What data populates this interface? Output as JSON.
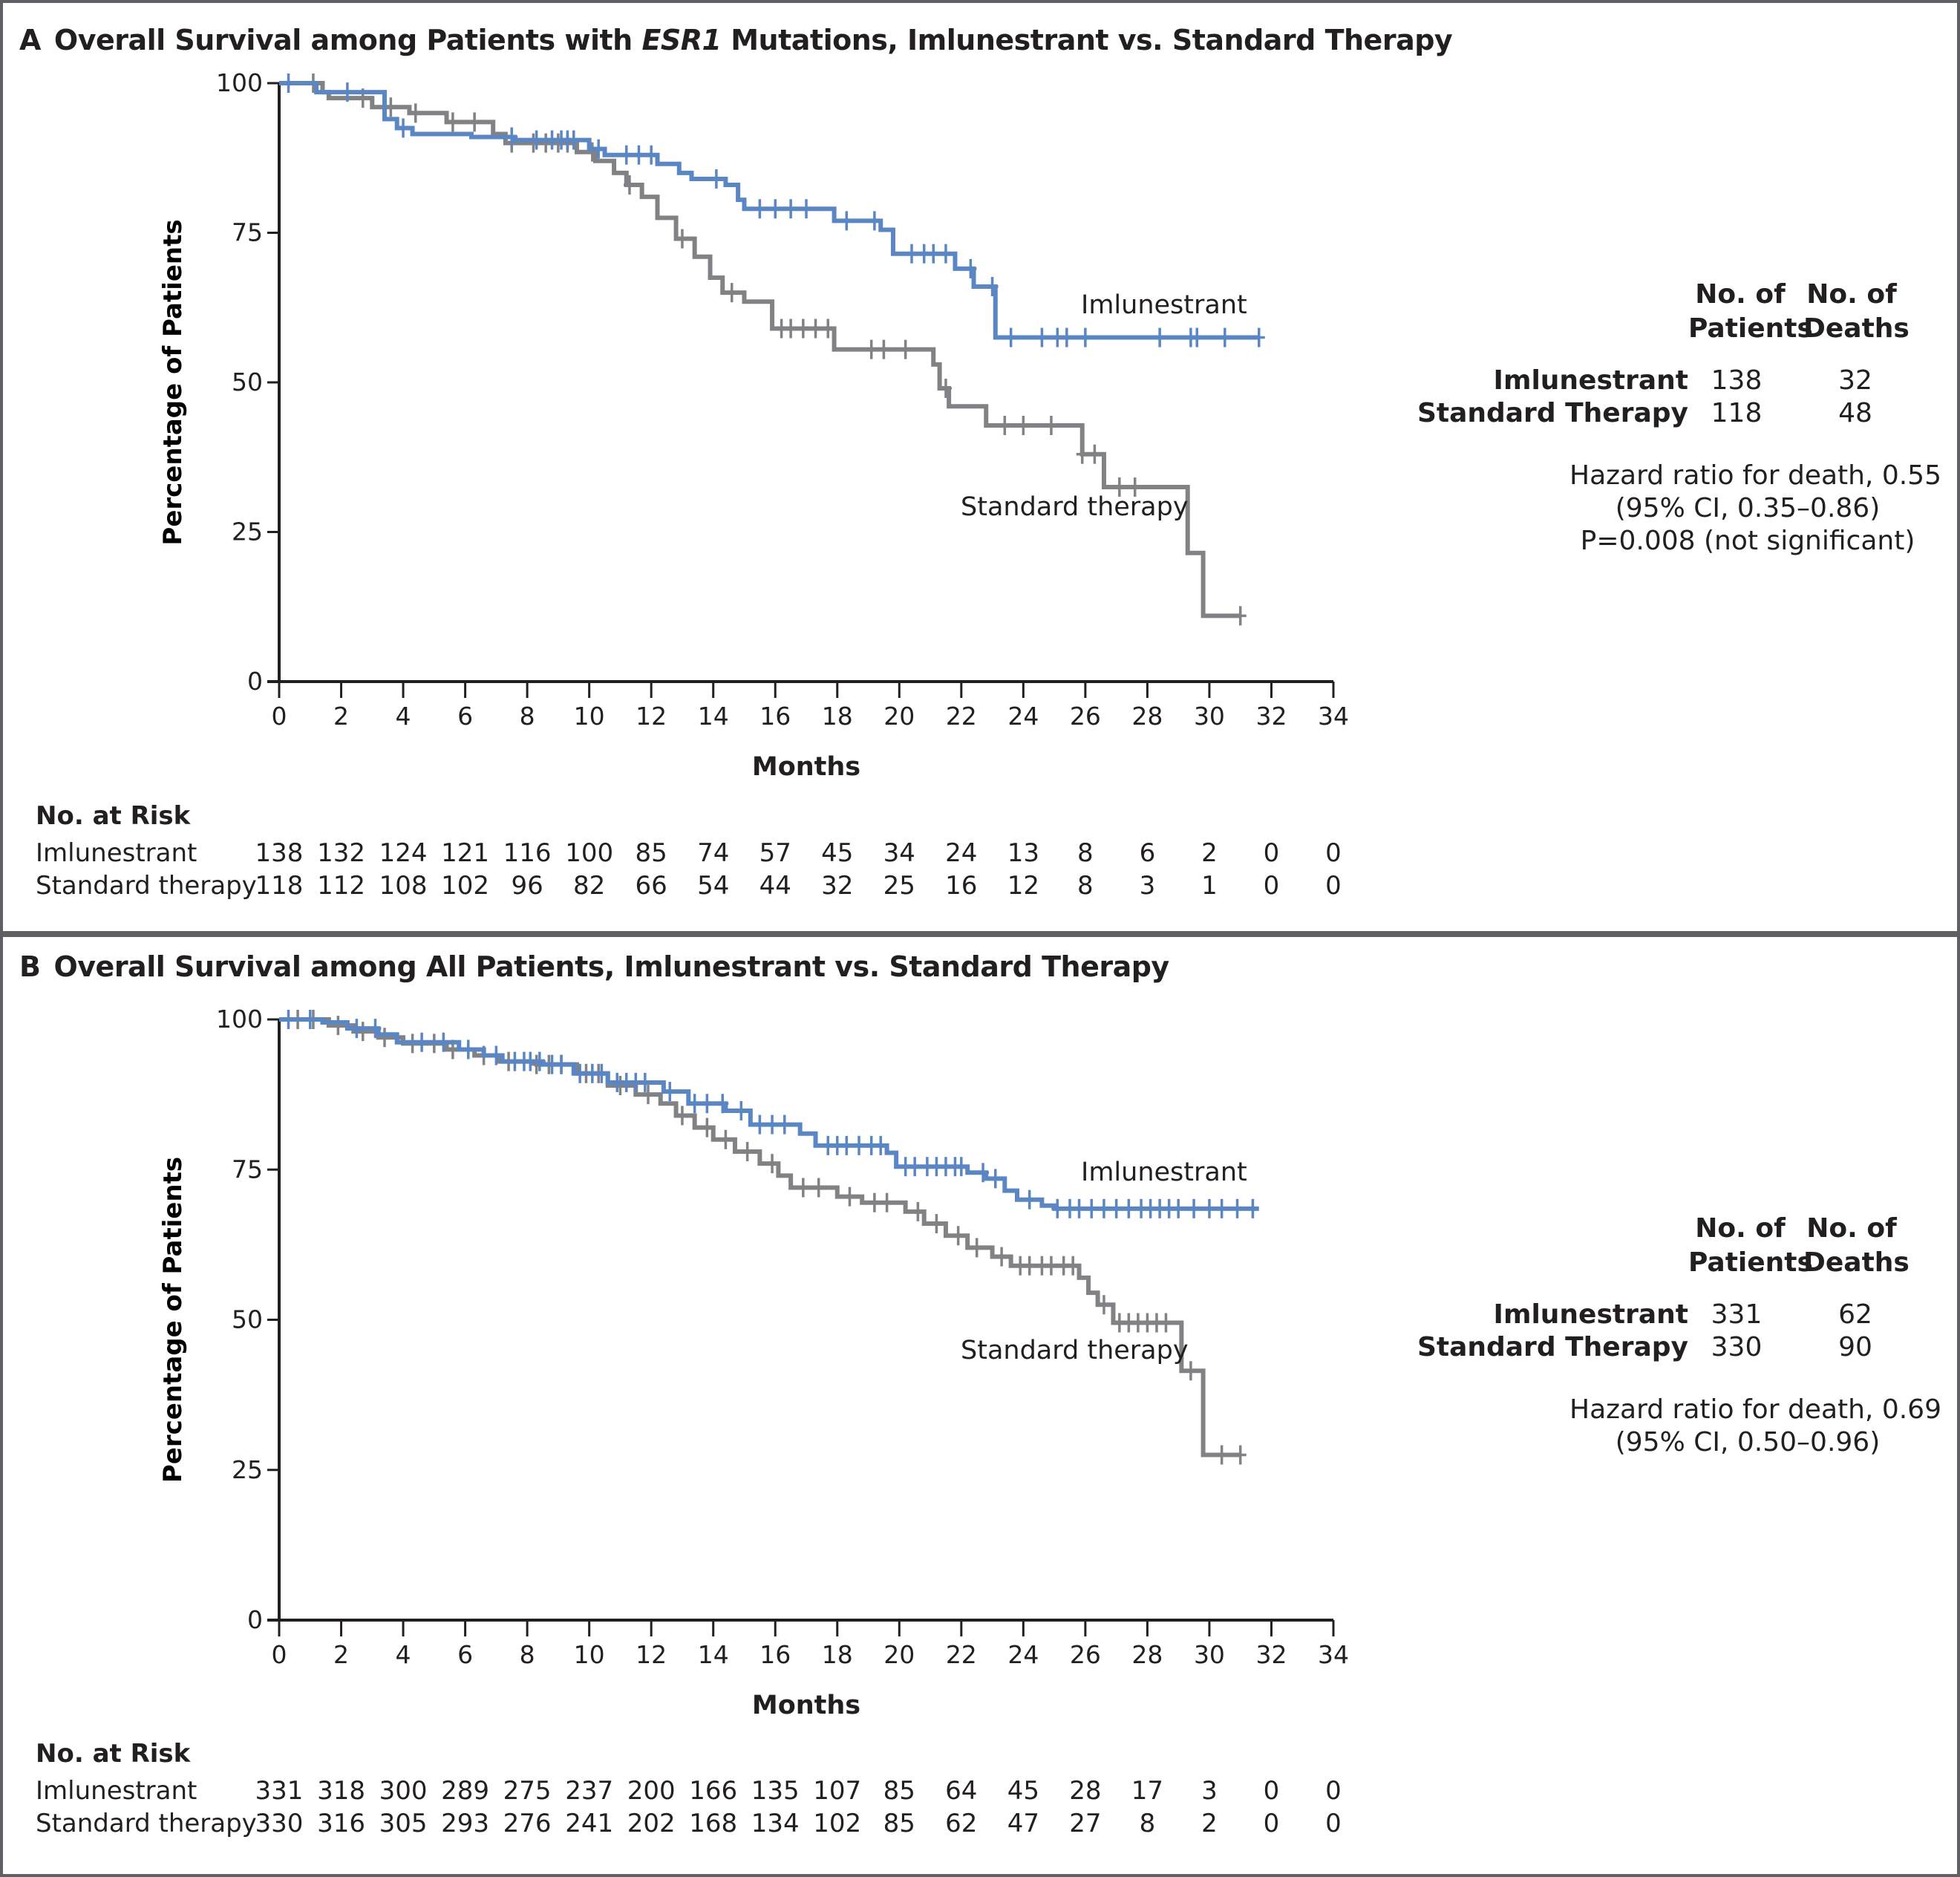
{
  "colors": {
    "imlunestrant": "#5b86c4",
    "standard": "#808285",
    "axis": "#231f20",
    "frame": "#5f6066"
  },
  "chart_data": [
    {
      "type": "line",
      "panel": "A",
      "title_letter": "A",
      "title_pre": "Overall Survival among Patients with ",
      "title_italic": "ESR1",
      "title_post": " Mutations, Imlunestrant vs. Standard Therapy",
      "xlabel": "Months",
      "ylabel": "Percentage of Patients",
      "xlim": [
        0,
        34
      ],
      "ylim": [
        0,
        100
      ],
      "xticks": [
        0,
        2,
        4,
        6,
        8,
        10,
        12,
        14,
        16,
        18,
        20,
        22,
        24,
        26,
        28,
        30,
        32,
        34
      ],
      "yticks": [
        0,
        25,
        50,
        75,
        100
      ],
      "grid": false,
      "series": [
        {
          "name": "Imlunestrant",
          "label": "Imlunestrant",
          "color": "#5b86c4",
          "steps": [
            [
              0,
              100
            ],
            [
              1.2,
              98.5
            ],
            [
              3.4,
              94
            ],
            [
              3.8,
              92.5
            ],
            [
              4.3,
              91.5
            ],
            [
              6.2,
              91
            ],
            [
              7.6,
              90.5
            ],
            [
              10,
              89
            ],
            [
              10.5,
              88
            ],
            [
              12.2,
              86.5
            ],
            [
              12.9,
              85
            ],
            [
              13.3,
              84
            ],
            [
              14.4,
              83
            ],
            [
              14.8,
              80.5
            ],
            [
              15,
              79
            ],
            [
              17.9,
              77
            ],
            [
              19.4,
              75.5
            ],
            [
              19.8,
              71.5
            ],
            [
              21.8,
              69
            ],
            [
              22.4,
              66
            ],
            [
              23.1,
              57.5
            ],
            [
              31.6,
              57.5
            ]
          ],
          "censor": [
            0.3,
            2.2,
            4,
            7.5,
            8.3,
            8.8,
            9.1,
            9.3,
            9.5,
            10.3,
            11.2,
            11.6,
            12,
            14.1,
            15.5,
            16,
            16.5,
            17,
            18.3,
            19.2,
            20.4,
            20.8,
            21.1,
            21.5,
            22.3,
            23,
            23.6,
            24.6,
            25.1,
            25.4,
            26,
            28.4,
            29.4,
            29.6,
            30.5,
            31.6
          ]
        },
        {
          "name": "Standard therapy",
          "label": "Standard therapy",
          "color": "#808285",
          "steps": [
            [
              0,
              100
            ],
            [
              1.4,
              98.5
            ],
            [
              1.6,
              97.5
            ],
            [
              3,
              96
            ],
            [
              4.2,
              95
            ],
            [
              5.4,
              93.5
            ],
            [
              6.9,
              91.5
            ],
            [
              7.3,
              90
            ],
            [
              9.6,
              88.5
            ],
            [
              10.2,
              87
            ],
            [
              10.8,
              85
            ],
            [
              11.2,
              83
            ],
            [
              11.7,
              81
            ],
            [
              12.2,
              77.5
            ],
            [
              12.8,
              74
            ],
            [
              13.4,
              71
            ],
            [
              13.9,
              67.5
            ],
            [
              14.3,
              65
            ],
            [
              15,
              63.5
            ],
            [
              15.9,
              59
            ],
            [
              17.9,
              55.5
            ],
            [
              21.1,
              53
            ],
            [
              21.3,
              49
            ],
            [
              21.6,
              46
            ],
            [
              22.8,
              42.8
            ],
            [
              25.9,
              38
            ],
            [
              26.6,
              32.5
            ],
            [
              29.3,
              21.5
            ],
            [
              29.8,
              11
            ],
            [
              31,
              11
            ]
          ],
          "censor": [
            1.1,
            2.7,
            3.6,
            4.4,
            5.6,
            6.3,
            7.5,
            8.2,
            8.6,
            9,
            9.3,
            10.1,
            11.3,
            13,
            14.6,
            16.2,
            16.5,
            16.9,
            17.3,
            17.7,
            19.1,
            19.5,
            20.2,
            21.5,
            23.4,
            24,
            24.9,
            25.9,
            26.3,
            27.1,
            27.6,
            31
          ]
        }
      ],
      "annotations": {
        "imlunestrant_label": "Imlunestrant",
        "standard_label": "Standard therapy"
      }
    },
    {
      "type": "line",
      "panel": "B",
      "title_letter": "B",
      "title_pre": "Overall Survival among All Patients, Imlunestrant vs. Standard Therapy",
      "title_italic": "",
      "title_post": "",
      "xlabel": "Months",
      "ylabel": "Percentage of Patients",
      "xlim": [
        0,
        34
      ],
      "ylim": [
        0,
        100
      ],
      "xticks": [
        0,
        2,
        4,
        6,
        8,
        10,
        12,
        14,
        16,
        18,
        20,
        22,
        24,
        26,
        28,
        30,
        32,
        34
      ],
      "yticks": [
        0,
        25,
        50,
        75,
        100
      ],
      "grid": false,
      "series": [
        {
          "name": "Imlunestrant",
          "label": "Imlunestrant",
          "color": "#5b86c4",
          "steps": [
            [
              0,
              100
            ],
            [
              1.4,
              99.5
            ],
            [
              2.2,
              98.5
            ],
            [
              3.2,
              97.5
            ],
            [
              3.8,
              96.2
            ],
            [
              5.8,
              95
            ],
            [
              6.6,
              94
            ],
            [
              7.2,
              93
            ],
            [
              8.5,
              92.5
            ],
            [
              9.5,
              91
            ],
            [
              10.6,
              89.5
            ],
            [
              12.4,
              88
            ],
            [
              13.2,
              86
            ],
            [
              14.4,
              84.8
            ],
            [
              15.2,
              82.5
            ],
            [
              16.8,
              81
            ],
            [
              17.3,
              79
            ],
            [
              19.6,
              77.8
            ],
            [
              19.9,
              75.5
            ],
            [
              22.2,
              74.5
            ],
            [
              22.8,
              73.5
            ],
            [
              23.4,
              71.5
            ],
            [
              23.8,
              70
            ],
            [
              24.6,
              69
            ],
            [
              25,
              68.5
            ],
            [
              31.6,
              68.5
            ]
          ],
          "censor": [
            0.3,
            1,
            2.5,
            3.1,
            4.6,
            5.3,
            6.1,
            7,
            7.6,
            7.9,
            8.1,
            8.4,
            8.8,
            9.1,
            9.7,
            10.1,
            10.4,
            10.9,
            11.2,
            11.5,
            11.8,
            12.6,
            13.4,
            13.8,
            14.3,
            14.9,
            15.5,
            15.9,
            16.3,
            17.7,
            18,
            18.3,
            18.7,
            19.1,
            19.4,
            20.2,
            20.5,
            20.9,
            21.2,
            21.5,
            21.8,
            22,
            22.7,
            23.1,
            24.2,
            25.1,
            25.5,
            25.8,
            26.2,
            26.6,
            27,
            27.4,
            27.8,
            28.1,
            28.4,
            28.7,
            29,
            29.5,
            30,
            30.4,
            30.9,
            31.4
          ]
        },
        {
          "name": "Standard therapy",
          "label": "Standard therapy",
          "color": "#808285",
          "steps": [
            [
              0,
              100
            ],
            [
              1.6,
              99
            ],
            [
              2.4,
              98
            ],
            [
              3.2,
              97
            ],
            [
              4,
              96
            ],
            [
              5.4,
              95
            ],
            [
              6.3,
              94
            ],
            [
              7.1,
              93
            ],
            [
              8.3,
              92.5
            ],
            [
              9.6,
              91
            ],
            [
              10.6,
              89
            ],
            [
              11.5,
              87.5
            ],
            [
              12.3,
              86
            ],
            [
              12.8,
              84
            ],
            [
              13.4,
              82
            ],
            [
              14,
              80
            ],
            [
              14.7,
              78
            ],
            [
              15.5,
              76
            ],
            [
              16.1,
              74
            ],
            [
              16.5,
              72
            ],
            [
              18,
              70.5
            ],
            [
              18.8,
              69.5
            ],
            [
              20.2,
              68
            ],
            [
              20.8,
              66
            ],
            [
              21.5,
              64
            ],
            [
              22.2,
              62
            ],
            [
              23,
              60.5
            ],
            [
              23.6,
              59
            ],
            [
              25.8,
              57
            ],
            [
              26.1,
              54.5
            ],
            [
              26.4,
              52.5
            ],
            [
              26.9,
              49.5
            ],
            [
              29.1,
              41.5
            ],
            [
              29.8,
              27.5
            ],
            [
              31,
              27.5
            ]
          ],
          "censor": [
            0.6,
            1.1,
            1.9,
            2.7,
            3.4,
            4.3,
            5,
            5.6,
            6.6,
            7.4,
            8.3,
            8.7,
            9.1,
            9.9,
            10.3,
            11,
            11.9,
            13,
            13.8,
            14.4,
            15.1,
            15.9,
            16.9,
            17.4,
            18.4,
            19.2,
            19.6,
            20.6,
            21.2,
            21.9,
            22.5,
            23.3,
            23.9,
            24.2,
            24.6,
            24.9,
            25.3,
            25.6,
            26.6,
            27.1,
            27.4,
            27.7,
            28,
            28.3,
            28.6,
            29.4,
            30.4,
            31
          ]
        }
      ],
      "annotations": {
        "imlunestrant_label": "Imlunestrant",
        "standard_label": "Standard therapy"
      }
    }
  ],
  "panels": [
    {
      "stats": {
        "col1_header": [
          "No. of",
          "Patients"
        ],
        "col2_header": [
          "No. of",
          "Deaths"
        ],
        "rows": [
          {
            "label": "Imlunestrant",
            "patients": "138",
            "deaths": "32"
          },
          {
            "label": "Standard Therapy",
            "patients": "118",
            "deaths": "48"
          }
        ],
        "hazard": [
          "Hazard ratio for death, 0.55",
          "(95% CI, 0.35–0.86)",
          "P=0.008 (not significant)"
        ]
      },
      "risk": {
        "title": "No. at Risk",
        "rows": [
          {
            "label": "Imlunestrant",
            "values": [
              "138",
              "132",
              "124",
              "121",
              "116",
              "100",
              "85",
              "74",
              "57",
              "45",
              "34",
              "24",
              "13",
              "8",
              "6",
              "2",
              "0",
              "0"
            ]
          },
          {
            "label": "Standard therapy",
            "values": [
              "118",
              "112",
              "108",
              "102",
              "96",
              "82",
              "66",
              "54",
              "44",
              "32",
              "25",
              "16",
              "12",
              "8",
              "3",
              "1",
              "0",
              "0"
            ]
          }
        ]
      }
    },
    {
      "stats": {
        "col1_header": [
          "No. of",
          "Patients"
        ],
        "col2_header": [
          "No. of",
          "Deaths"
        ],
        "rows": [
          {
            "label": "Imlunestrant",
            "patients": "331",
            "deaths": "62"
          },
          {
            "label": "Standard Therapy",
            "patients": "330",
            "deaths": "90"
          }
        ],
        "hazard": [
          "Hazard ratio for death, 0.69",
          "(95% CI, 0.50–0.96)"
        ]
      },
      "risk": {
        "title": "No. at Risk",
        "rows": [
          {
            "label": "Imlunestrant",
            "values": [
              "331",
              "318",
              "300",
              "289",
              "275",
              "237",
              "200",
              "166",
              "135",
              "107",
              "85",
              "64",
              "45",
              "28",
              "17",
              "3",
              "0",
              "0"
            ]
          },
          {
            "label": "Standard therapy",
            "values": [
              "330",
              "316",
              "305",
              "293",
              "276",
              "241",
              "202",
              "168",
              "134",
              "102",
              "85",
              "62",
              "47",
              "27",
              "8",
              "2",
              "0",
              "0"
            ]
          }
        ]
      }
    }
  ]
}
